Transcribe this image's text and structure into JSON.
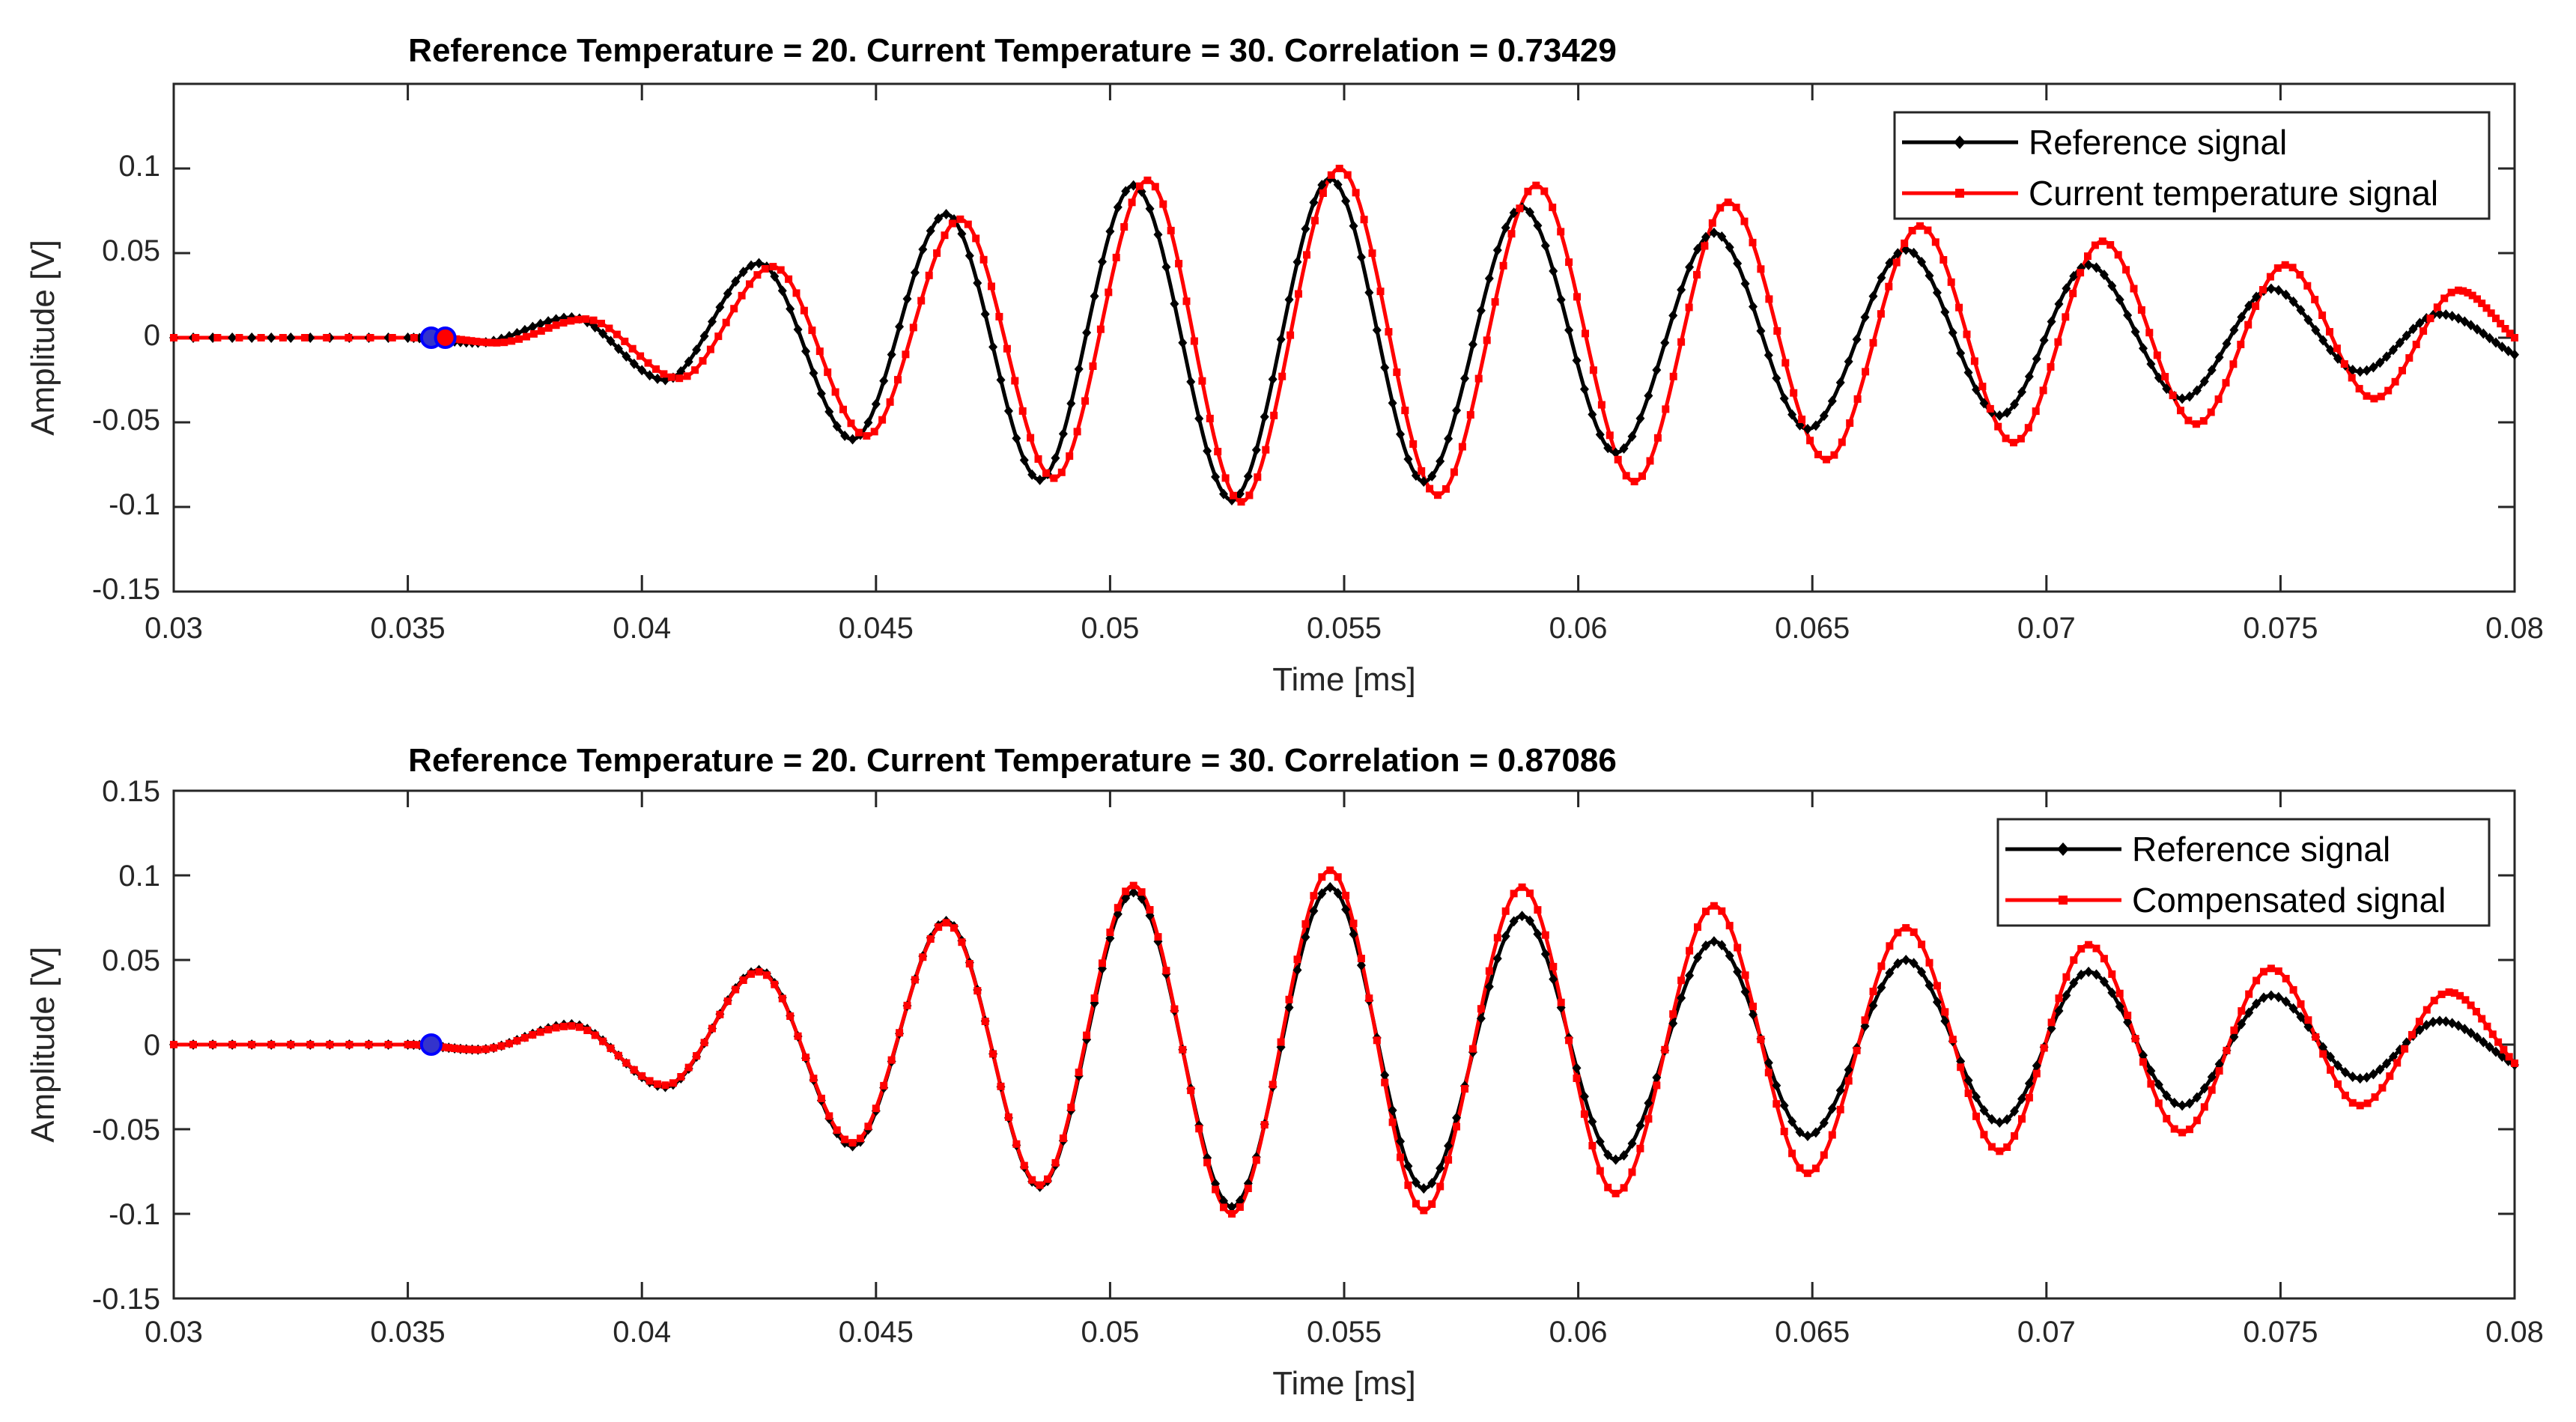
{
  "chart_data": [
    {
      "type": "line",
      "title": "Reference Temperature = 20. Current Temperature = 30. Correlation = 0.73429",
      "xlabel": "Time [ms]",
      "ylabel": "Amplitude [V]",
      "xlim": [
        0.03,
        0.08
      ],
      "ylim": [
        -0.15,
        0.15
      ],
      "xticks": [
        "0.03",
        "0.035",
        "0.04",
        "0.045",
        "0.05",
        "0.055",
        "0.06",
        "0.065",
        "0.07",
        "0.075",
        "0.08"
      ],
      "yticks": [
        "-0.15",
        "-0.1",
        "-0.05",
        "0",
        "0.05",
        "0.1"
      ],
      "legend_position": "top-right",
      "series": [
        {
          "name": "Reference signal",
          "color": "#000000",
          "marker": "diamond",
          "x": [
            0.03,
            0.035,
            0.0365,
            0.0385,
            0.0405,
            0.0425,
            0.0445,
            0.0465,
            0.0485,
            0.0505,
            0.0526,
            0.0547,
            0.0567,
            0.0588,
            0.0608,
            0.0629,
            0.0649,
            0.067,
            0.069,
            0.0709,
            0.0729,
            0.0748,
            0.0767,
            0.0784,
            0.08
          ],
          "y": [
            0,
            0,
            -0.003,
            0.012,
            -0.025,
            0.044,
            -0.06,
            0.073,
            -0.084,
            0.09,
            -0.096,
            0.094,
            -0.085,
            0.077,
            -0.068,
            0.062,
            -0.054,
            0.052,
            -0.046,
            0.043,
            -0.036,
            0.029,
            -0.02,
            0.014,
            -0.01
          ]
        },
        {
          "name": "Current temperature signal",
          "color": "#ff0000",
          "marker": "square",
          "x": [
            0.03,
            0.0356,
            0.0369,
            0.0388,
            0.0408,
            0.0428,
            0.0448,
            0.0468,
            0.0488,
            0.0508,
            0.0528,
            0.0549,
            0.057,
            0.0591,
            0.0612,
            0.0632,
            0.0653,
            0.0673,
            0.0693,
            0.0712,
            0.0732,
            0.0751,
            0.077,
            0.0788,
            0.08
          ],
          "y": [
            0,
            0,
            -0.003,
            0.011,
            -0.024,
            0.042,
            -0.058,
            0.07,
            -0.083,
            0.093,
            -0.097,
            0.1,
            -0.093,
            0.09,
            -0.085,
            0.08,
            -0.072,
            0.066,
            -0.062,
            0.057,
            -0.051,
            0.043,
            -0.036,
            0.028,
            0.0
          ]
        }
      ],
      "markers": [
        {
          "x": 0.0355,
          "y": 0,
          "color": "#0000ff"
        },
        {
          "x": 0.0358,
          "y": 0,
          "color": "#ff0000"
        }
      ]
    },
    {
      "type": "line",
      "title": "Reference Temperature = 20. Current Temperature = 30. Correlation = 0.87086",
      "xlabel": "Time [ms]",
      "ylabel": "Amplitude [V]",
      "xlim": [
        0.03,
        0.08
      ],
      "ylim": [
        -0.15,
        0.15
      ],
      "xticks": [
        "0.03",
        "0.035",
        "0.04",
        "0.045",
        "0.05",
        "0.055",
        "0.06",
        "0.065",
        "0.07",
        "0.075",
        "0.08"
      ],
      "yticks": [
        "-0.15",
        "-0.1",
        "-0.05",
        "0",
        "0.05",
        "0.1",
        "0.15"
      ],
      "legend_position": "top-right",
      "series": [
        {
          "name": "Reference signal",
          "color": "#000000",
          "marker": "diamond",
          "x": [
            0.03,
            0.035,
            0.0365,
            0.0385,
            0.0405,
            0.0425,
            0.0445,
            0.0465,
            0.0485,
            0.0505,
            0.0526,
            0.0547,
            0.0567,
            0.0588,
            0.0608,
            0.0629,
            0.0649,
            0.067,
            0.069,
            0.0709,
            0.0729,
            0.0748,
            0.0767,
            0.0784,
            0.08
          ],
          "y": [
            0,
            0,
            -0.003,
            0.012,
            -0.025,
            0.044,
            -0.06,
            0.073,
            -0.084,
            0.09,
            -0.096,
            0.093,
            -0.085,
            0.076,
            -0.068,
            0.061,
            -0.054,
            0.05,
            -0.046,
            0.043,
            -0.036,
            0.029,
            -0.02,
            0.014,
            -0.012
          ]
        },
        {
          "name": "Compensated signal",
          "color": "#ff0000",
          "marker": "square",
          "x": [
            0.03,
            0.035,
            0.0365,
            0.0385,
            0.0405,
            0.0425,
            0.0445,
            0.0465,
            0.0485,
            0.0505,
            0.0526,
            0.0547,
            0.0567,
            0.0588,
            0.0608,
            0.0629,
            0.0649,
            0.067,
            0.069,
            0.0709,
            0.0729,
            0.0748,
            0.0767,
            0.0786,
            0.08
          ],
          "y": [
            0,
            0,
            -0.003,
            0.011,
            -0.024,
            0.043,
            -0.058,
            0.072,
            -0.083,
            0.094,
            -0.1,
            0.103,
            -0.098,
            0.093,
            -0.088,
            0.082,
            -0.076,
            0.069,
            -0.063,
            0.059,
            -0.052,
            0.045,
            -0.036,
            0.031,
            -0.011
          ]
        }
      ],
      "markers": [
        {
          "x": 0.0355,
          "y": 0,
          "color": "#0000ff"
        }
      ]
    }
  ]
}
